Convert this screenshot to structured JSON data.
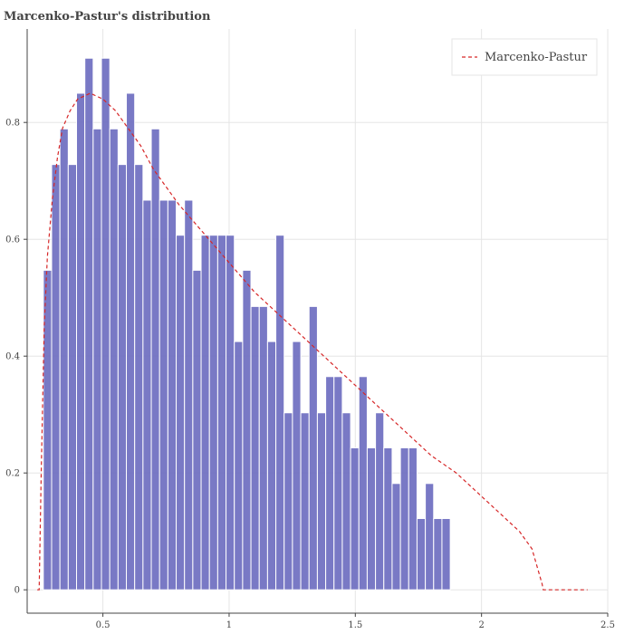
{
  "chart_data": {
    "type": "bar",
    "title": "Marcenko-Pastur's distribution",
    "xlabel": "",
    "ylabel": "",
    "xlim": [
      0.2,
      2.5
    ],
    "ylim": [
      -0.04,
      0.96
    ],
    "x_ticks": [
      0.5,
      1,
      1.5,
      2,
      2.5
    ],
    "x_tick_labels": [
      "0.5",
      "1",
      "1.5",
      "2",
      "2.5"
    ],
    "y_ticks": [
      0,
      0.2,
      0.4,
      0.6,
      0.8
    ],
    "y_tick_labels": [
      "0",
      "0.2",
      "0.4",
      "0.6",
      "0.8"
    ],
    "grid": true,
    "legend_position": "top-right",
    "histogram": {
      "bin_start": 0.264,
      "bin_width": 0.0329,
      "values": [
        0.547,
        0.728,
        0.789,
        0.728,
        0.85,
        0.91,
        0.789,
        0.91,
        0.789,
        0.728,
        0.85,
        0.728,
        0.667,
        0.789,
        0.667,
        0.667,
        0.607,
        0.667,
        0.547,
        0.607,
        0.607,
        0.607,
        0.607,
        0.425,
        0.547,
        0.485,
        0.485,
        0.425,
        0.607,
        0.303,
        0.425,
        0.303,
        0.485,
        0.303,
        0.365,
        0.365,
        0.303,
        0.243,
        0.365,
        0.243,
        0.303,
        0.243,
        0.182,
        0.243,
        0.243,
        0.122,
        0.182,
        0.122,
        0.122
      ],
      "color": "#6a6abf"
    },
    "curve": {
      "name": "Marcenko-Pastur",
      "color": "#d62728",
      "x": [
        0.24,
        0.2475,
        0.2556,
        0.2675,
        0.28,
        0.3,
        0.32,
        0.34,
        0.37,
        0.4,
        0.45,
        0.5,
        0.55,
        0.6,
        0.65,
        0.7,
        0.8,
        0.9,
        1.0,
        1.1,
        1.2,
        1.3,
        1.4,
        1.5,
        1.6,
        1.7,
        1.8,
        1.9,
        2.0,
        2.05,
        2.1,
        2.15,
        2.2,
        2.22,
        2.24,
        2.2444,
        2.3,
        2.35,
        2.4,
        2.42
      ],
      "y": [
        0,
        0,
        0.2,
        0.45,
        0.57,
        0.67,
        0.74,
        0.79,
        0.82,
        0.84,
        0.85,
        0.84,
        0.82,
        0.79,
        0.76,
        0.72,
        0.66,
        0.61,
        0.56,
        0.51,
        0.47,
        0.43,
        0.39,
        0.35,
        0.31,
        0.27,
        0.23,
        0.2,
        0.16,
        0.14,
        0.12,
        0.1,
        0.07,
        0.04,
        0.01,
        0,
        0,
        0,
        0,
        0
      ]
    }
  }
}
